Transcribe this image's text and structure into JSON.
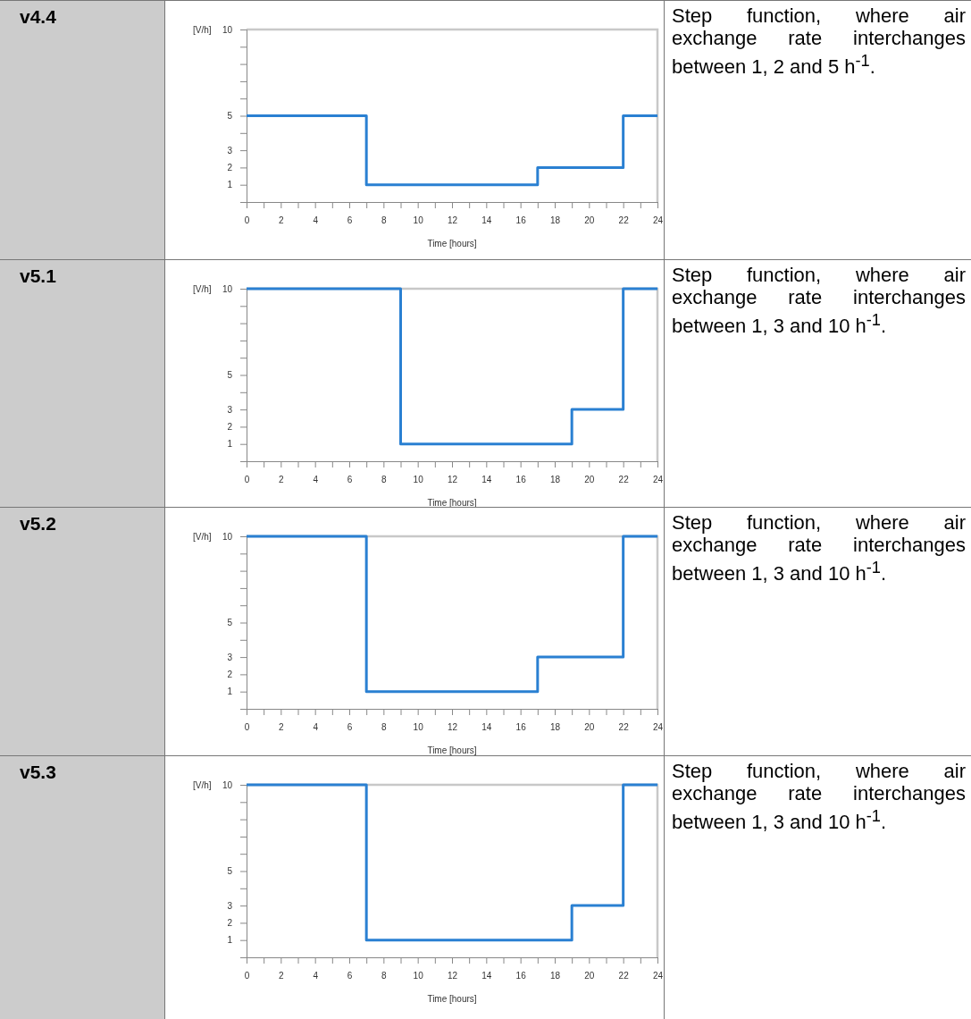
{
  "chart_data": [
    {
      "type": "step",
      "ylabel": "[V/h]",
      "xlabel": "Time [hours]",
      "annotations": [
        "v4.4",
        "Step function, where air exchange rate interchanges between 1, 2 and 5 h$^{-1}$."
      ],
      "series": [
        {
          "color": "#2a80d2",
          "x": [
            0,
            7,
            17,
            22,
            24
          ],
          "values": [
            5,
            1,
            2,
            5,
            5
          ]
        }
      ],
      "xlim": [
        0,
        24
      ],
      "xticks": [
        0,
        {
          "value": 1,
          "label": null
        },
        2,
        {
          "value": 3,
          "label": null
        },
        4,
        {
          "value": 5,
          "label": null
        },
        6,
        {
          "value": 7,
          "label": null
        },
        8,
        {
          "value": 9,
          "label": null
        },
        10,
        {
          "value": 11,
          "label": null
        },
        12,
        {
          "value": 13,
          "label": null
        },
        14,
        {
          "value": 15,
          "label": null
        },
        16,
        {
          "value": 17,
          "label": null
        },
        18,
        {
          "value": 19,
          "label": null
        },
        20,
        {
          "value": 21,
          "label": null
        },
        22,
        {
          "value": 23,
          "label": null
        },
        24
      ],
      "ylim": [
        0,
        10
      ],
      "yticks": [
        {
          "value": 0,
          "label": null
        },
        1,
        2,
        3,
        {
          "value": 4,
          "label": null
        },
        5,
        {
          "value": 6,
          "label": null
        },
        {
          "value": 7,
          "label": null
        },
        {
          "value": 8,
          "label": null
        },
        {
          "value": 9,
          "label": null
        },
        10
      ]
    },
    {
      "type": "step",
      "ylabel": "[V/h]",
      "xlabel": "Time [hours]",
      "annotations": [
        "v5.1",
        "Step function, where air exchange rate interchanges between 1, 3 and 10 h$^{-1}$."
      ],
      "series": [
        {
          "color": "#2a80d2",
          "x": [
            0,
            9,
            19,
            22,
            24
          ],
          "values": [
            10,
            1,
            3,
            10,
            10
          ]
        }
      ],
      "xlim": [
        0,
        24
      ],
      "xticks": [
        0,
        {
          "value": 1,
          "label": null
        },
        2,
        {
          "value": 3,
          "label": null
        },
        4,
        {
          "value": 5,
          "label": null
        },
        6,
        {
          "value": 7,
          "label": null
        },
        8,
        {
          "value": 9,
          "label": null
        },
        10,
        {
          "value": 11,
          "label": null
        },
        12,
        {
          "value": 13,
          "label": null
        },
        14,
        {
          "value": 15,
          "label": null
        },
        16,
        {
          "value": 17,
          "label": null
        },
        18,
        {
          "value": 19,
          "label": null
        },
        20,
        {
          "value": 21,
          "label": null
        },
        22,
        {
          "value": 23,
          "label": null
        },
        24
      ],
      "ylim": [
        0,
        10
      ],
      "yticks": [
        {
          "value": 0,
          "label": null
        },
        1,
        2,
        3,
        {
          "value": 4,
          "label": null
        },
        5,
        {
          "value": 6,
          "label": null
        },
        {
          "value": 7,
          "label": null
        },
        {
          "value": 8,
          "label": null
        },
        {
          "value": 9,
          "label": null
        },
        10
      ]
    },
    {
      "type": "step",
      "ylabel": "[V/h]",
      "xlabel": "Time [hours]",
      "annotations": [
        "v5.2",
        "Step function, where air exchange rate interchanges between 1, 3 and 10 h$^{-1}$."
      ],
      "series": [
        {
          "color": "#2a80d2",
          "x": [
            0,
            7,
            17,
            22,
            24
          ],
          "values": [
            10,
            1,
            3,
            10,
            10
          ]
        }
      ],
      "xlim": [
        0,
        24
      ],
      "xticks": [
        0,
        {
          "value": 1,
          "label": null
        },
        2,
        {
          "value": 3,
          "label": null
        },
        4,
        {
          "value": 5,
          "label": null
        },
        6,
        {
          "value": 7,
          "label": null
        },
        8,
        {
          "value": 9,
          "label": null
        },
        10,
        {
          "value": 11,
          "label": null
        },
        12,
        {
          "value": 13,
          "label": null
        },
        14,
        {
          "value": 15,
          "label": null
        },
        16,
        {
          "value": 17,
          "label": null
        },
        18,
        {
          "value": 19,
          "label": null
        },
        20,
        {
          "value": 21,
          "label": null
        },
        22,
        {
          "value": 23,
          "label": null
        },
        24
      ],
      "ylim": [
        0,
        10
      ],
      "yticks": [
        {
          "value": 0,
          "label": null
        },
        1,
        2,
        3,
        {
          "value": 4,
          "label": null
        },
        5,
        {
          "value": 6,
          "label": null
        },
        {
          "value": 7,
          "label": null
        },
        {
          "value": 8,
          "label": null
        },
        {
          "value": 9,
          "label": null
        },
        10
      ]
    },
    {
      "type": "step",
      "ylabel": "[V/h]",
      "xlabel": "Time [hours]",
      "annotations": [
        "v5.3",
        "Step function, where air exchange rate interchanges between 1, 3 and 10 h$^{-1}$."
      ],
      "series": [
        {
          "color": "#2a80d2",
          "x": [
            0,
            7,
            19,
            22,
            24
          ],
          "values": [
            10,
            1,
            3,
            10,
            10
          ]
        }
      ],
      "xlim": [
        0,
        24
      ],
      "xticks": [
        0,
        {
          "value": 1,
          "label": null
        },
        2,
        {
          "value": 3,
          "label": null
        },
        4,
        {
          "value": 5,
          "label": null
        },
        6,
        {
          "value": 7,
          "label": null
        },
        8,
        {
          "value": 9,
          "label": null
        },
        10,
        {
          "value": 11,
          "label": null
        },
        12,
        {
          "value": 13,
          "label": null
        },
        14,
        {
          "value": 15,
          "label": null
        },
        16,
        {
          "value": 17,
          "label": null
        },
        18,
        {
          "value": 19,
          "label": null
        },
        20,
        {
          "value": 21,
          "label": null
        },
        22,
        {
          "value": 23,
          "label": null
        },
        24
      ],
      "ylim": [
        0,
        10
      ],
      "yticks": [
        {
          "value": 0,
          "label": null
        },
        1,
        2,
        3,
        {
          "value": 4,
          "label": null
        },
        5,
        {
          "value": 6,
          "label": null
        },
        {
          "value": 7,
          "label": null
        },
        {
          "value": 8,
          "label": null
        },
        {
          "value": 9,
          "label": null
        },
        10
      ]
    }
  ]
}
